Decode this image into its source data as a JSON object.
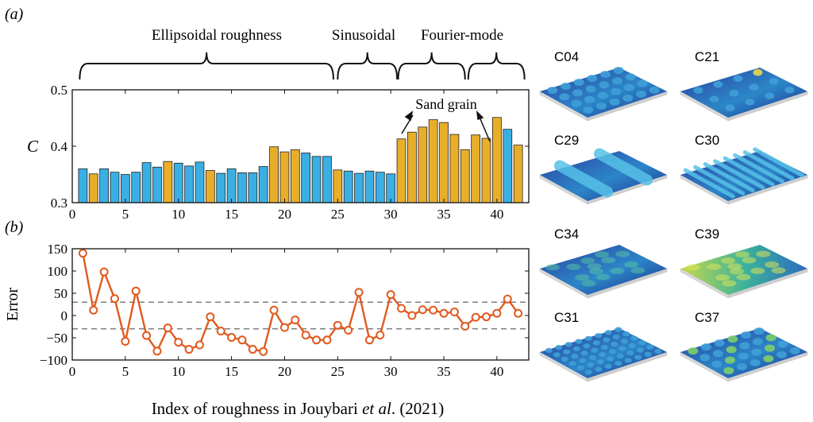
{
  "panel_labels": {
    "a": "(a)",
    "b": "(b)"
  },
  "groups": [
    {
      "label": "Ellipsoidal roughness"
    },
    {
      "label": "Sinusoidal"
    },
    {
      "label": "Fourier-mode"
    },
    {
      "label": ""
    }
  ],
  "annotation": {
    "sand_grain": "Sand grain"
  },
  "xlabel_parts": {
    "pre": "Index of roughness in Jouybari ",
    "em": "et al",
    "post": ". (2021)"
  },
  "colors": {
    "blue": "#3AAFE3",
    "gold": "#E8AE2A",
    "error_line": "#E05A1E",
    "axis": "#111111"
  },
  "chart_data": [
    {
      "type": "bar",
      "title": "",
      "xlabel": "Index of roughness in Jouybari et al. (2021)",
      "ylabel": "C",
      "xlim": [
        0,
        43
      ],
      "ylim": [
        0.3,
        0.5
      ],
      "xticks": [
        0,
        5,
        10,
        15,
        20,
        25,
        30,
        35,
        40
      ],
      "yticks": [
        0.3,
        0.4,
        0.5
      ],
      "x": [
        1,
        2,
        3,
        4,
        5,
        6,
        7,
        8,
        9,
        10,
        11,
        12,
        13,
        14,
        15,
        16,
        17,
        18,
        19,
        20,
        21,
        22,
        23,
        24,
        25,
        26,
        27,
        28,
        29,
        30,
        31,
        32,
        33,
        34,
        35,
        36,
        37,
        38,
        39,
        40,
        41,
        42
      ],
      "values": [
        0.36,
        0.351,
        0.36,
        0.354,
        0.35,
        0.354,
        0.371,
        0.363,
        0.373,
        0.37,
        0.365,
        0.372,
        0.357,
        0.352,
        0.36,
        0.353,
        0.353,
        0.364,
        0.399,
        0.39,
        0.394,
        0.388,
        0.382,
        0.382,
        0.358,
        0.356,
        0.352,
        0.356,
        0.354,
        0.351,
        0.413,
        0.425,
        0.434,
        0.447,
        0.442,
        0.421,
        0.394,
        0.42,
        0.414,
        0.451,
        0.43,
        0.402
      ],
      "bar_colors": [
        "blue",
        "gold",
        "blue",
        "blue",
        "blue",
        "blue",
        "blue",
        "blue",
        "gold",
        "blue",
        "blue",
        "blue",
        "gold",
        "blue",
        "blue",
        "blue",
        "blue",
        "blue",
        "gold",
        "gold",
        "gold",
        "blue",
        "blue",
        "blue",
        "gold",
        "blue",
        "blue",
        "blue",
        "blue",
        "blue",
        "gold",
        "gold",
        "gold",
        "gold",
        "gold",
        "gold",
        "gold",
        "gold",
        "gold",
        "gold",
        "blue",
        "gold"
      ],
      "grid": false
    },
    {
      "type": "line",
      "title": "",
      "xlabel": "Index of roughness in Jouybari et al. (2021)",
      "ylabel": "Error",
      "xlim": [
        0,
        43
      ],
      "ylim": [
        -100,
        150
      ],
      "xticks": [
        0,
        5,
        10,
        15,
        20,
        25,
        30,
        35,
        40
      ],
      "yticks": [
        -100,
        -50,
        0,
        50,
        100,
        150
      ],
      "reference_lines": [
        30,
        -30
      ],
      "x": [
        1,
        2,
        3,
        4,
        5,
        6,
        7,
        8,
        9,
        10,
        11,
        12,
        13,
        14,
        15,
        16,
        17,
        18,
        19,
        20,
        21,
        22,
        23,
        24,
        25,
        26,
        27,
        28,
        29,
        30,
        31,
        32,
        33,
        34,
        35,
        36,
        37,
        38,
        39,
        40,
        41,
        42
      ],
      "y": [
        140,
        12,
        98,
        38,
        -58,
        55,
        -45,
        -80,
        -28,
        -60,
        -76,
        -66,
        -3,
        -35,
        -49,
        -55,
        -76,
        -81,
        12,
        -27,
        -10,
        -44,
        -55,
        -55,
        -22,
        -33,
        52,
        -55,
        -44,
        47,
        16,
        0,
        13,
        12,
        5,
        8,
        -24,
        -4,
        -3,
        5,
        37,
        5
      ],
      "grid": false
    }
  ],
  "thumbnails": [
    {
      "id": "C04",
      "label": "C04",
      "style": "bumps-regular"
    },
    {
      "id": "C21",
      "label": "C21",
      "style": "bumps-sparse"
    },
    {
      "id": "C29",
      "label": "C29",
      "style": "wave-long"
    },
    {
      "id": "C30",
      "label": "C30",
      "style": "wave-short"
    },
    {
      "id": "C34",
      "label": "C34",
      "style": "fourier-fine"
    },
    {
      "id": "C39",
      "label": "C39",
      "style": "fourier-smooth"
    },
    {
      "id": "C31",
      "label": "C31",
      "style": "grain-dense"
    },
    {
      "id": "C37",
      "label": "C37",
      "style": "grain-mixed"
    }
  ]
}
